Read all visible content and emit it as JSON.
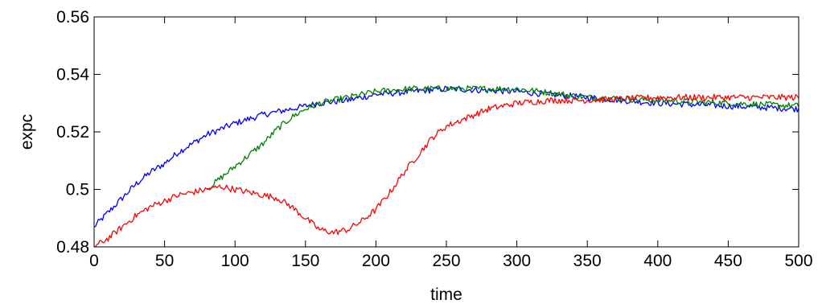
{
  "chart_data": {
    "type": "line",
    "title": "",
    "xlabel": "time",
    "ylabel": "expc",
    "xlim": [
      0,
      500
    ],
    "ylim": [
      0.48,
      0.56
    ],
    "xticks": [
      0,
      50,
      100,
      150,
      200,
      250,
      300,
      350,
      400,
      450,
      500
    ],
    "xtick_labels": [
      "0",
      "50",
      "100",
      "150",
      "200",
      "250",
      "300",
      "350",
      "400",
      "450",
      "500"
    ],
    "yticks": [
      0.48,
      0.5,
      0.52,
      0.54,
      0.56
    ],
    "ytick_labels": [
      "0.48",
      "0.5",
      "0.52",
      "0.54",
      "0.56"
    ],
    "grid": false,
    "legend": "none",
    "series": [
      {
        "color": "#0000ff",
        "x": [
          0,
          10,
          20,
          30,
          40,
          50,
          60,
          70,
          80,
          90,
          100,
          120,
          140,
          160,
          180,
          200,
          250,
          300,
          350,
          400,
          450,
          500
        ],
        "y": [
          0.487,
          0.492,
          0.497,
          0.502,
          0.506,
          0.509,
          0.513,
          0.516,
          0.519,
          0.521,
          0.523,
          0.526,
          0.528,
          0.53,
          0.531,
          0.533,
          0.535,
          0.534,
          0.532,
          0.53,
          0.529,
          0.528
        ]
      },
      {
        "color": "#007f00",
        "x": [
          80,
          90,
          100,
          110,
          120,
          130,
          140,
          150,
          160,
          170,
          180,
          190,
          200,
          225,
          250,
          300,
          350,
          400,
          450,
          500
        ],
        "y": [
          0.5,
          0.504,
          0.508,
          0.512,
          0.516,
          0.521,
          0.525,
          0.528,
          0.53,
          0.531,
          0.532,
          0.533,
          0.534,
          0.535,
          0.535,
          0.535,
          0.532,
          0.531,
          0.53,
          0.529
        ]
      },
      {
        "color": "#ff0000",
        "x": [
          0,
          10,
          20,
          30,
          40,
          50,
          60,
          70,
          80,
          90,
          100,
          110,
          120,
          130,
          140,
          150,
          160,
          170,
          180,
          190,
          200,
          210,
          220,
          230,
          240,
          250,
          260,
          270,
          280,
          290,
          300,
          325,
          350,
          400,
          450,
          500
        ],
        "y": [
          0.48,
          0.483,
          0.487,
          0.491,
          0.494,
          0.496,
          0.498,
          0.499,
          0.5,
          0.501,
          0.5,
          0.499,
          0.498,
          0.497,
          0.494,
          0.49,
          0.486,
          0.485,
          0.486,
          0.489,
          0.493,
          0.499,
          0.506,
          0.512,
          0.518,
          0.522,
          0.524,
          0.526,
          0.528,
          0.529,
          0.53,
          0.531,
          0.531,
          0.532,
          0.532,
          0.532
        ]
      }
    ]
  }
}
